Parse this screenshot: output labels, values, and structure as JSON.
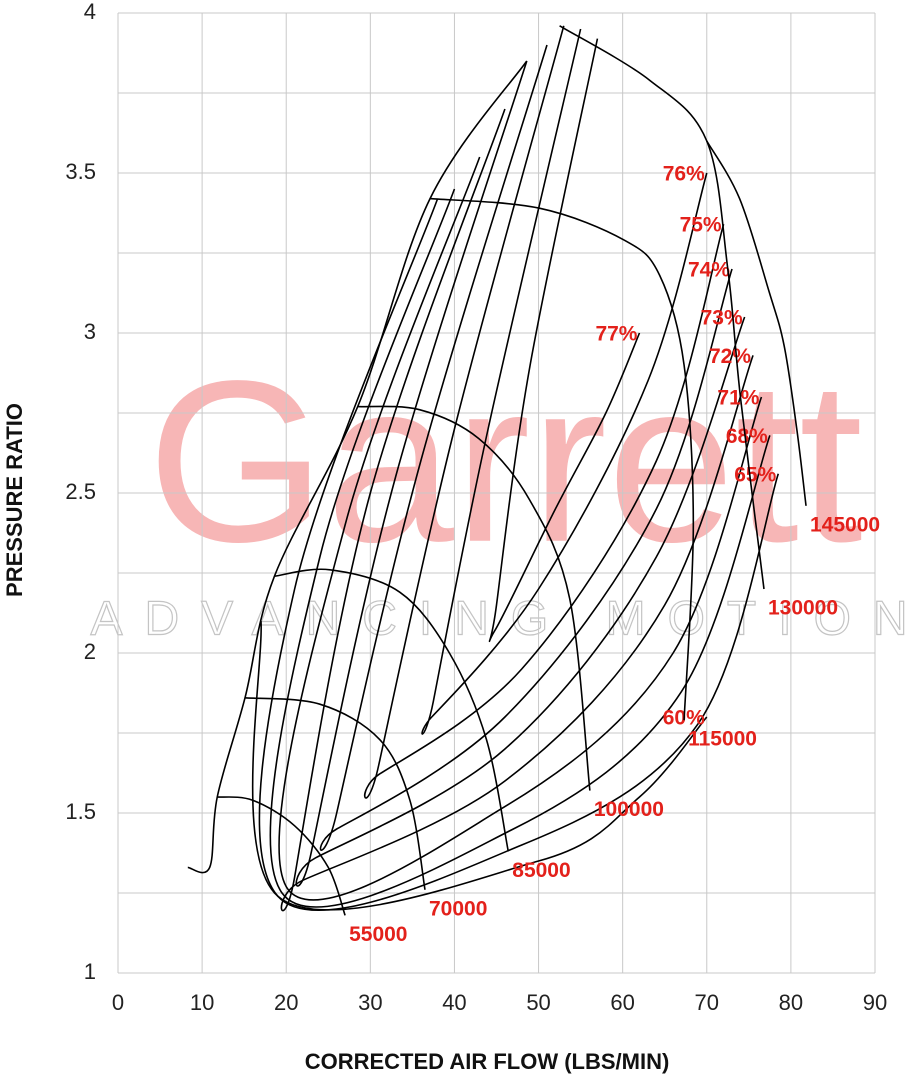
{
  "chart_data": {
    "type": "compressor_map",
    "x_label": "CORRECTED AIR FLOW (LBS/MIN)",
    "y_label": "PRESSURE RATIO",
    "watermark": {
      "brand": "Garrett",
      "tagline": "ADVANCING MOTION"
    },
    "xlim": [
      0,
      90
    ],
    "ylim": [
      1,
      4
    ],
    "xticks": [
      0,
      10,
      20,
      30,
      40,
      50,
      60,
      70,
      80,
      90
    ],
    "yticks": [
      1,
      1.5,
      2,
      2.5,
      3,
      3.5,
      4
    ],
    "y_minor_grid": [
      1.25,
      1.75,
      2.25,
      2.75,
      3.25,
      3.75
    ],
    "grid": true,
    "line_color": "#000000",
    "label_color": "#e3211b",
    "surge_line": {
      "x": [
        8.3,
        10.9,
        11.8,
        15.1,
        18.6,
        28.5,
        37.1,
        48.6
      ],
      "y": [
        1.33,
        1.33,
        1.55,
        1.86,
        2.24,
        2.77,
        3.42,
        3.85
      ]
    },
    "speed_lines": [
      {
        "name": "55000",
        "x": [
          11.8,
          16,
          21,
          25,
          27
        ],
        "y": [
          1.55,
          1.54,
          1.46,
          1.33,
          1.18
        ]
      },
      {
        "name": "70000",
        "x": [
          15.1,
          24,
          31.1,
          34.7,
          36.5
        ],
        "y": [
          1.86,
          1.84,
          1.73,
          1.54,
          1.26
        ]
      },
      {
        "name": "85000",
        "x": [
          18.6,
          25.2,
          33.5,
          39.4,
          43.8,
          46.4
        ],
        "y": [
          2.24,
          2.26,
          2.19,
          2.0,
          1.73,
          1.38
        ]
      },
      {
        "name": "100000",
        "x": [
          28.5,
          35.9,
          42.9,
          48.9,
          53.7,
          56.1
        ],
        "y": [
          2.77,
          2.76,
          2.67,
          2.48,
          2.17,
          1.57
        ]
      },
      {
        "name": "115000",
        "x": [
          37.1,
          50.1,
          60.2,
          64.4,
          67.3,
          68.4,
          67.3
        ],
        "y": [
          3.42,
          3.39,
          3.29,
          3.18,
          2.9,
          2.4,
          1.79
        ]
      },
      {
        "name": "130000",
        "x": [
          52.5,
          63.2,
          70,
          72.5,
          74,
          76.8
        ],
        "y": [
          3.96,
          3.79,
          3.6,
          3.2,
          2.8,
          2.2
        ]
      },
      {
        "name": "145000",
        "x": [
          70,
          73.9,
          77.4,
          79.2,
          80.7,
          81.8
        ],
        "y": [
          3.6,
          3.42,
          3.13,
          2.96,
          2.7,
          2.46
        ]
      }
    ],
    "efficiency_contours": [
      {
        "name": "77%",
        "x": [
          57,
          49,
          45,
          44.8,
          52,
          58,
          62
        ],
        "y": [
          3.92,
          2.9,
          2.15,
          2.07,
          2.45,
          2.75,
          3.0
        ]
      },
      {
        "name": "76%",
        "x": [
          55,
          44,
          37.5,
          37.3,
          50,
          63,
          70
        ],
        "y": [
          3.95,
          2.7,
          1.85,
          1.8,
          2.2,
          2.85,
          3.5
        ]
      },
      {
        "name": "75%",
        "x": [
          53,
          40,
          31,
          31,
          48,
          64,
          72
        ],
        "y": [
          3.96,
          2.7,
          1.65,
          1.62,
          1.95,
          2.6,
          3.34
        ]
      },
      {
        "name": "74%",
        "x": [
          51,
          36,
          26,
          26,
          46,
          64,
          73
        ],
        "y": [
          3.9,
          2.6,
          1.5,
          1.45,
          1.8,
          2.45,
          3.2
        ]
      },
      {
        "name": "73%",
        "x": [
          48.6,
          33,
          23,
          23.5,
          46,
          64,
          74.5
        ],
        "y": [
          3.85,
          2.55,
          1.38,
          1.36,
          1.7,
          2.3,
          3.05
        ]
      },
      {
        "name": "72%",
        "x": [
          46,
          30,
          21,
          22,
          46,
          65,
          75.5
        ],
        "y": [
          3.7,
          2.5,
          1.3,
          1.29,
          1.6,
          2.15,
          2.93
        ]
      },
      {
        "name": "71%",
        "x": [
          43,
          27,
          20,
          46,
          66,
          76.5
        ],
        "y": [
          3.55,
          2.4,
          1.27,
          1.52,
          2.0,
          2.8
        ]
      },
      {
        "name": "68%",
        "x": [
          40,
          24,
          19.5,
          47,
          67,
          77.5
        ],
        "y": [
          3.45,
          2.3,
          1.25,
          1.45,
          1.88,
          2.68
        ]
      },
      {
        "name": "65%",
        "x": [
          38,
          21,
          19,
          48,
          69,
          78.5
        ],
        "y": [
          3.42,
          2.2,
          1.24,
          1.4,
          1.78,
          2.56
        ]
      },
      {
        "name": "60%",
        "x": [
          17,
          19,
          50,
          62,
          70
        ],
        "y": [
          2.1,
          1.24,
          1.35,
          1.55,
          1.8
        ]
      }
    ]
  }
}
